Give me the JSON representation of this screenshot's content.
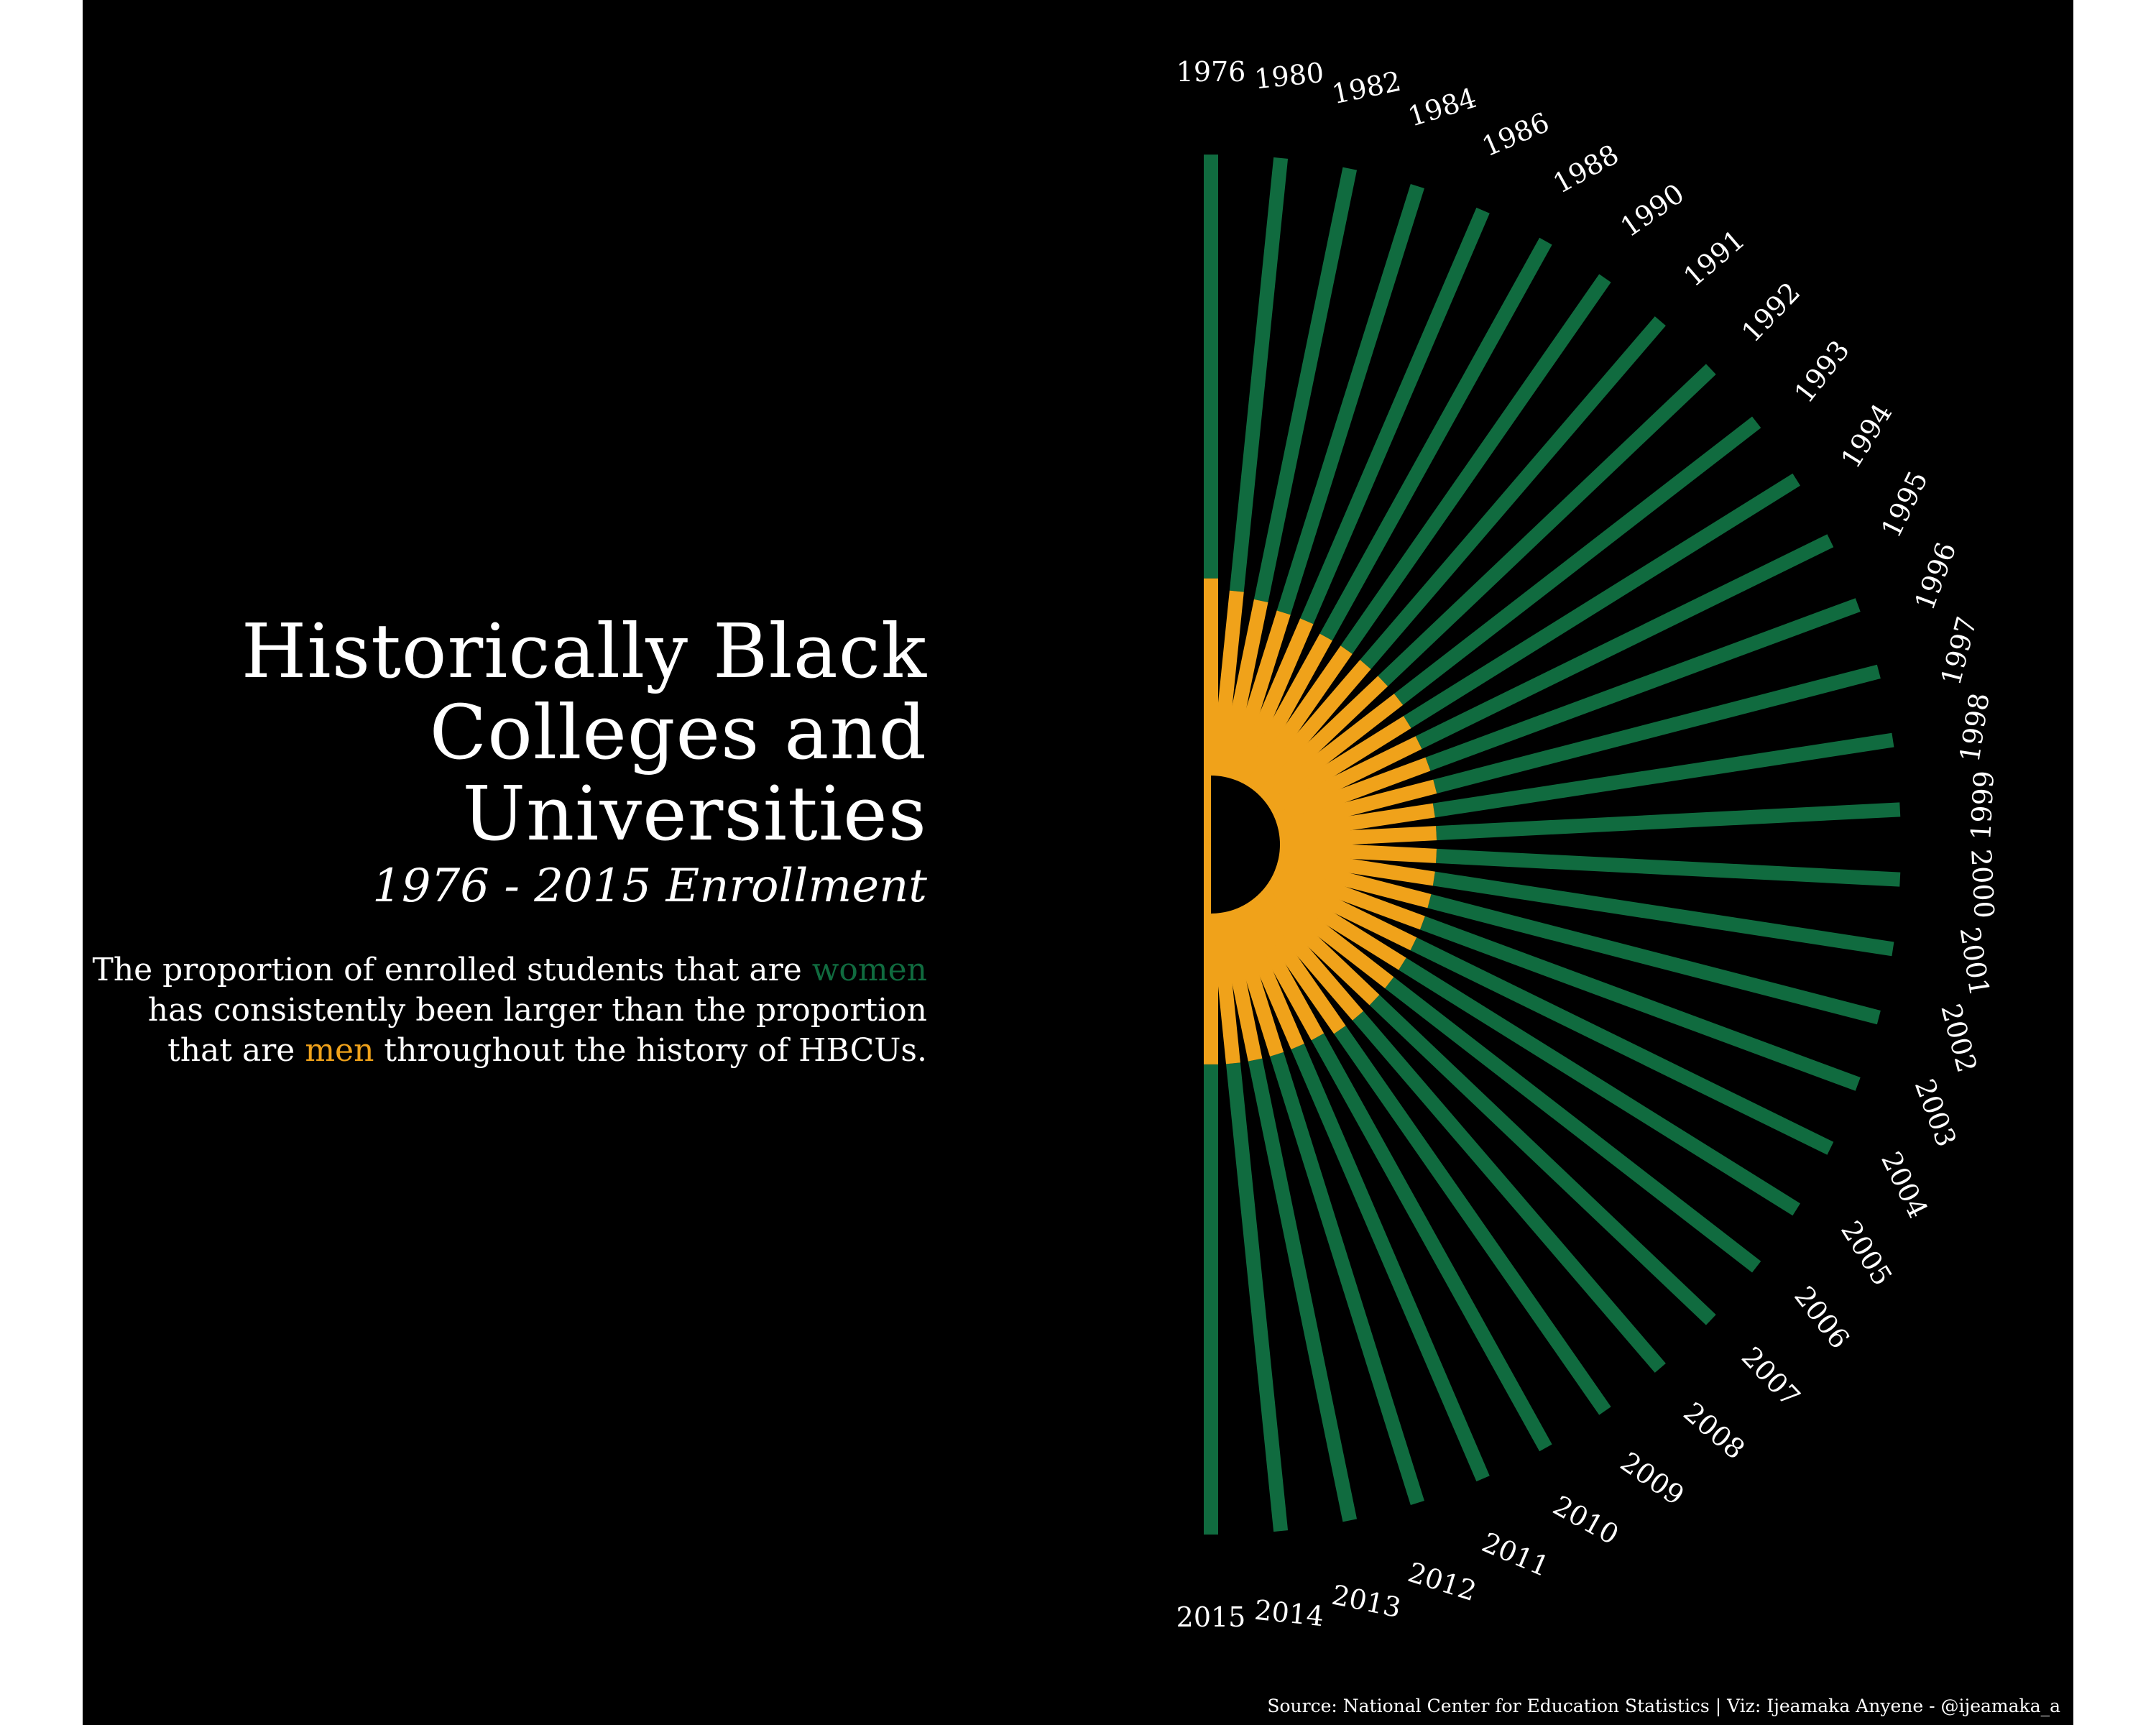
{
  "title": {
    "lines": [
      "Historically Black",
      "Colleges and",
      "Universities"
    ],
    "subtitle": "1976 - 2015 Enrollment"
  },
  "description": {
    "line1_before": "The proportion of enrolled students that are ",
    "line1_women": "women",
    "line2": "has consistently been larger than the proportion",
    "line3_before": "that are ",
    "line3_men": "men",
    "line3_after": " throughout the history of HBCUs."
  },
  "source": "Source: National Center for Education Statistics | Viz: Ijeamaka Anyene - @ijeamaka_a",
  "colors": {
    "background": "#000000",
    "women": "#106b3f",
    "men": "#f0a21a",
    "text": "#ffffff"
  },
  "chart_data": {
    "type": "radial-bar",
    "categories": [
      "1976",
      "1980",
      "1982",
      "1984",
      "1986",
      "1988",
      "1990",
      "1991",
      "1992",
      "1993",
      "1994",
      "1995",
      "1996",
      "1997",
      "1998",
      "1999",
      "2000",
      "2001",
      "2002",
      "2003",
      "2004",
      "2005",
      "2006",
      "2007",
      "2008",
      "2009",
      "2010",
      "2011",
      "2012",
      "2013",
      "2014",
      "2015"
    ],
    "series": [
      {
        "name": "men",
        "values": [
          0.46,
          0.44,
          0.43,
          0.42,
          0.42,
          0.41,
          0.41,
          0.41,
          0.41,
          0.41,
          0.4,
          0.4,
          0.4,
          0.4,
          0.39,
          0.39,
          0.39,
          0.39,
          0.39,
          0.39,
          0.39,
          0.39,
          0.39,
          0.39,
          0.39,
          0.39,
          0.38,
          0.38,
          0.38,
          0.38,
          0.38,
          0.38
        ]
      },
      {
        "name": "women",
        "values": [
          0.54,
          0.56,
          0.57,
          0.58,
          0.58,
          0.59,
          0.59,
          0.59,
          0.59,
          0.59,
          0.6,
          0.6,
          0.6,
          0.6,
          0.61,
          0.61,
          0.61,
          0.61,
          0.61,
          0.61,
          0.61,
          0.61,
          0.61,
          0.61,
          0.61,
          0.61,
          0.62,
          0.62,
          0.62,
          0.62,
          0.62,
          0.62
        ]
      }
    ]
  }
}
